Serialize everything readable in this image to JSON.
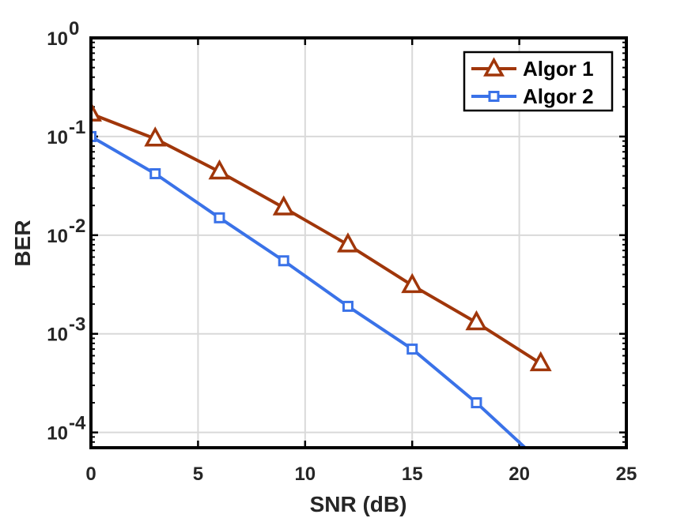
{
  "chart_data": {
    "type": "line",
    "title": "",
    "xlabel": "SNR (dB)",
    "ylabel": "BER",
    "xlim": [
      0,
      25
    ],
    "ylim": [
      7e-05,
      1
    ],
    "yscale": "log",
    "grid": true,
    "legend_position": "top-right",
    "x_ticks": [
      0,
      5,
      10,
      15,
      20,
      25
    ],
    "x_tick_labels": [
      "0",
      "5",
      "10",
      "15",
      "20",
      "25"
    ],
    "y_ticks": [
      {
        "value": 1,
        "base": "10",
        "exp": "0"
      },
      {
        "value": 0.1,
        "base": "10",
        "exp": "-1"
      },
      {
        "value": 0.01,
        "base": "10",
        "exp": "-2"
      },
      {
        "value": 0.001,
        "base": "10",
        "exp": "-3"
      },
      {
        "value": 0.0001,
        "base": "10",
        "exp": "-4"
      }
    ],
    "series": [
      {
        "name": "Algor 1",
        "color": "#A0360A",
        "marker": "triangle",
        "x": [
          0,
          3,
          6,
          9,
          12,
          15,
          18,
          21
        ],
        "y": [
          0.17,
          0.095,
          0.044,
          0.019,
          0.008,
          0.0031,
          0.0013,
          0.0005
        ]
      },
      {
        "name": "Algor 2",
        "color": "#3A72E8",
        "marker": "square",
        "x": [
          0,
          3,
          6,
          9,
          12,
          15,
          18,
          21
        ],
        "y": [
          0.1,
          0.042,
          0.015,
          0.0055,
          0.0019,
          0.0007,
          0.0002,
          5e-05
        ]
      }
    ]
  }
}
